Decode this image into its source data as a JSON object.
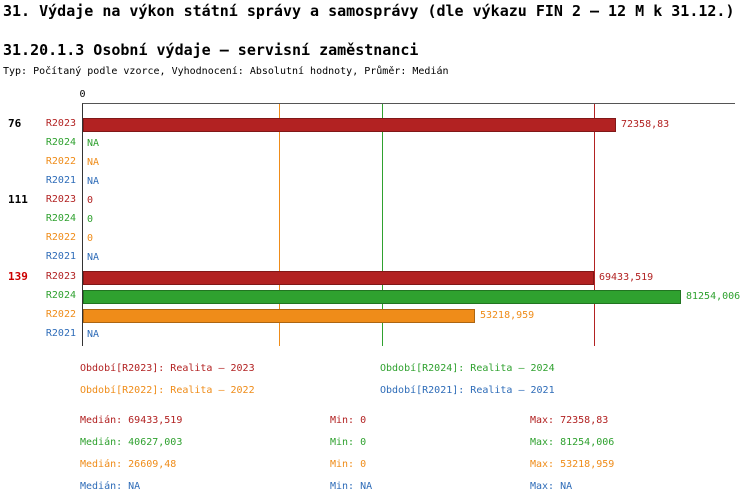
{
  "header": {
    "title": "31. Výdaje na výkon státní správy a samosprávy (dle výkazu FIN 2 – 12 M k 31.12.)",
    "subtitle": "31.20.1.3 Osobní výdaje – servisní zaměstnanci",
    "meta": "Typ: Počítaný podle vzorce, Vyhodnocení: Absolutní hodnoty, Průměr: Medián"
  },
  "chart_data": {
    "type": "bar",
    "orientation": "horizontal",
    "xlim": [
      0,
      88700
    ],
    "axis_zero_label": "0",
    "grid": "median-lines-per-series",
    "legend_position": "bottom",
    "series": [
      {
        "id": "R2023",
        "label": "R2023",
        "color": "#b22222",
        "legend": "Období[R2023]: Realita – 2023"
      },
      {
        "id": "R2024",
        "label": "R2024",
        "color": "#2fa12f",
        "legend": "Období[R2024]: Realita – 2024"
      },
      {
        "id": "R2022",
        "label": "R2022",
        "color": "#ef8c19",
        "legend": "Období[R2022]: Realita – 2022"
      },
      {
        "id": "R2021",
        "label": "R2021",
        "color": "#2e6cb8",
        "legend": "Období[R2021]: Realita – 2021"
      }
    ],
    "groups": [
      {
        "label": "76",
        "label_color": "#000000",
        "rows": [
          {
            "series": "R2023",
            "value": 72358.83,
            "display": "72358,83"
          },
          {
            "series": "R2024",
            "value": null,
            "display": "NA"
          },
          {
            "series": "R2022",
            "value": null,
            "display": "NA"
          },
          {
            "series": "R2021",
            "value": null,
            "display": "NA"
          }
        ]
      },
      {
        "label": "111",
        "label_color": "#000000",
        "rows": [
          {
            "series": "R2023",
            "value": 0,
            "display": "0"
          },
          {
            "series": "R2024",
            "value": 0,
            "display": "0"
          },
          {
            "series": "R2022",
            "value": 0,
            "display": "0"
          },
          {
            "series": "R2021",
            "value": null,
            "display": "NA"
          }
        ]
      },
      {
        "label": "139",
        "label_color": "#cc0000",
        "rows": [
          {
            "series": "R2023",
            "value": 69433.519,
            "display": "69433,519"
          },
          {
            "series": "R2024",
            "value": 81254.006,
            "display": "81254,006"
          },
          {
            "series": "R2022",
            "value": 53218.959,
            "display": "53218,959"
          },
          {
            "series": "R2021",
            "value": null,
            "display": "NA"
          }
        ]
      }
    ],
    "median_lines": [
      {
        "series": "R2022",
        "value": 26609.48
      },
      {
        "series": "R2024",
        "value": 40627.003
      },
      {
        "series": "R2023",
        "value": 69433.519
      }
    ],
    "stats": [
      {
        "series": "R2023",
        "median": "Medián: 69433,519",
        "min": "Min: 0",
        "max": "Max: 72358,83"
      },
      {
        "series": "R2024",
        "median": "Medián: 40627,003",
        "min": "Min: 0",
        "max": "Max: 81254,006"
      },
      {
        "series": "R2022",
        "median": "Medián: 26609,48",
        "min": "Min: 0",
        "max": "Max: 53218,959"
      },
      {
        "series": "R2021",
        "median": "Medián: NA",
        "min": "Min: NA",
        "max": "Max: NA"
      }
    ]
  }
}
